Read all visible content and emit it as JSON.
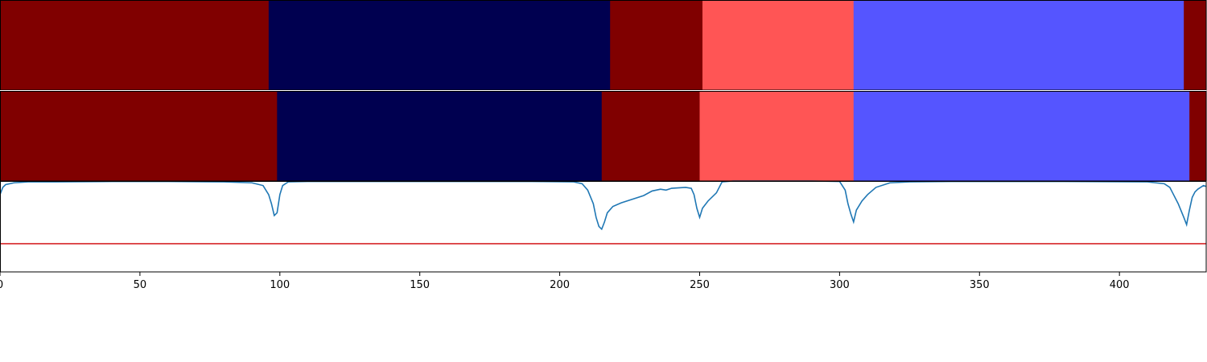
{
  "chart_data": [
    {
      "type": "heatmap",
      "colors": {
        "0": "#800000",
        "1": "#000050",
        "2": "#ff5555",
        "3": "#5555ff"
      },
      "segments": [
        {
          "start": 0,
          "end": 96,
          "class": 0
        },
        {
          "start": 96,
          "end": 218,
          "class": 1
        },
        {
          "start": 218,
          "end": 251,
          "class": 0
        },
        {
          "start": 251,
          "end": 305,
          "class": 2
        },
        {
          "start": 305,
          "end": 423,
          "class": 3
        },
        {
          "start": 423,
          "end": 431,
          "class": 0
        }
      ]
    },
    {
      "type": "heatmap",
      "colors": {
        "0": "#800000",
        "1": "#000050",
        "2": "#ff5555",
        "3": "#5555ff"
      },
      "segments": [
        {
          "start": 0,
          "end": 99,
          "class": 0
        },
        {
          "start": 99,
          "end": 215,
          "class": 1
        },
        {
          "start": 215,
          "end": 250,
          "class": 0
        },
        {
          "start": 250,
          "end": 305,
          "class": 2
        },
        {
          "start": 305,
          "end": 425,
          "class": 3
        },
        {
          "start": 425,
          "end": 431,
          "class": 0
        }
      ]
    },
    {
      "type": "line",
      "xlim": [
        0,
        431
      ],
      "ylim": [
        0,
        1
      ],
      "xticks": [
        0,
        50,
        100,
        150,
        200,
        250,
        300,
        350,
        400
      ],
      "line_color": "#1f77b4",
      "threshold": 0.31,
      "threshold_color": "#d62728",
      "series": [
        {
          "x": [
            0,
            1,
            2,
            5,
            10,
            20,
            40,
            60,
            80,
            90,
            94,
            96,
            97,
            98,
            99,
            100,
            101,
            103,
            110,
            150,
            190,
            205,
            208,
            210,
            212,
            213,
            214,
            215,
            216,
            217,
            219,
            222,
            226,
            230,
            233,
            236,
            238,
            240,
            245,
            247,
            248,
            249,
            250,
            251,
            253,
            256,
            258,
            262,
            270,
            280,
            290,
            300,
            302,
            303,
            304,
            305,
            306,
            308,
            310,
            313,
            318,
            325,
            340,
            380,
            410,
            416,
            418,
            419,
            421,
            423,
            424,
            425,
            426,
            427,
            428,
            429,
            430,
            431
          ],
          "y": [
            0.85,
            0.93,
            0.96,
            0.98,
            0.99,
            0.99,
            0.995,
            0.995,
            0.99,
            0.98,
            0.95,
            0.85,
            0.75,
            0.62,
            0.65,
            0.85,
            0.95,
            0.99,
            0.995,
            0.995,
            0.995,
            0.99,
            0.97,
            0.9,
            0.75,
            0.6,
            0.5,
            0.47,
            0.55,
            0.65,
            0.72,
            0.76,
            0.8,
            0.84,
            0.89,
            0.91,
            0.9,
            0.92,
            0.93,
            0.92,
            0.85,
            0.7,
            0.6,
            0.7,
            0.78,
            0.87,
            0.99,
            1.0,
            1.0,
            1.0,
            1.0,
            0.995,
            0.9,
            0.75,
            0.64,
            0.55,
            0.68,
            0.78,
            0.85,
            0.93,
            0.98,
            0.99,
            0.995,
            0.995,
            0.99,
            0.97,
            0.93,
            0.87,
            0.75,
            0.6,
            0.52,
            0.68,
            0.82,
            0.88,
            0.91,
            0.93,
            0.95,
            0.94
          ]
        }
      ]
    }
  ]
}
